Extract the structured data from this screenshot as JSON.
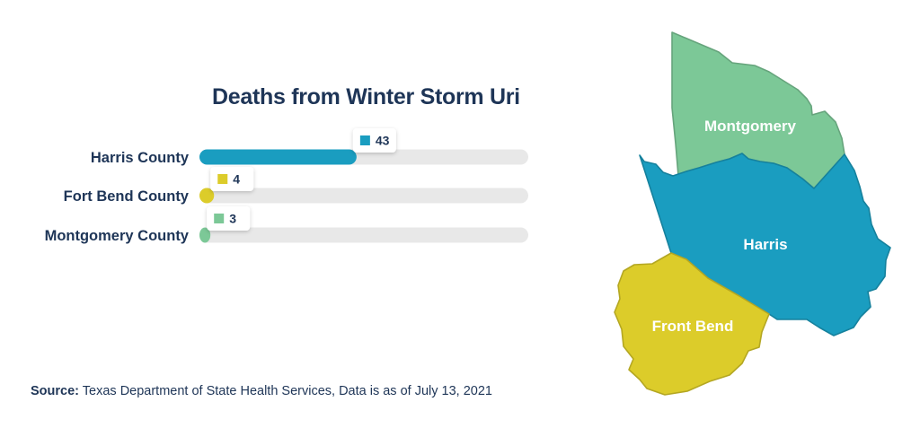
{
  "chart_data": {
    "type": "bar",
    "orientation": "horizontal",
    "title": "Deaths from Winter Storm Uri",
    "categories": [
      "Harris County",
      "Fort Bend County",
      "Montgomery County"
    ],
    "values": [
      43,
      4,
      3
    ],
    "xlim": [
      0,
      90
    ],
    "colors": [
      "#1a9dc0",
      "#dccc2a",
      "#7cc897"
    ],
    "track_color": "#e8e8e8",
    "grid": false,
    "legend": "none"
  },
  "source": {
    "label": "Source:",
    "text": "Texas Department of State Health Services, Data is as of July 13, 2021"
  },
  "map": {
    "regions": [
      {
        "name": "Montgomery",
        "color": "#7cc897"
      },
      {
        "name": "Harris",
        "color": "#1a9dc0"
      },
      {
        "name": "Front Bend",
        "color": "#dccc2a"
      }
    ]
  }
}
